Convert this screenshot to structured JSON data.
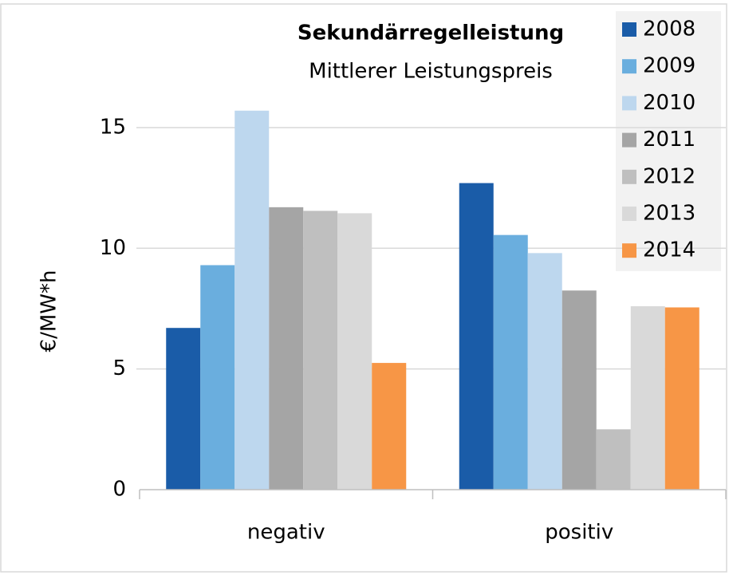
{
  "chart_data": {
    "type": "bar",
    "title": "Sekundärregelleistung",
    "subtitle": "Mittlerer Leistungspreis",
    "y_label": "€/MW*h",
    "categories": [
      "negativ",
      "positiv"
    ],
    "series": [
      {
        "name": "2008",
        "color": "#1a5ca8",
        "values": [
          6.7,
          12.7
        ]
      },
      {
        "name": "2009",
        "color": "#6aaede",
        "values": [
          9.3,
          10.55
        ]
      },
      {
        "name": "2010",
        "color": "#bdd7ee",
        "values": [
          15.7,
          9.8
        ]
      },
      {
        "name": "2011",
        "color": "#a5a5a5",
        "values": [
          11.7,
          8.25
        ]
      },
      {
        "name": "2012",
        "color": "#bfbfbf",
        "values": [
          11.55,
          2.5
        ]
      },
      {
        "name": "2013",
        "color": "#d9d9d9",
        "values": [
          11.45,
          7.6
        ]
      },
      {
        "name": "2014",
        "color": "#f79646",
        "values": [
          5.25,
          7.55
        ]
      }
    ],
    "ylim": [
      0,
      20
    ],
    "yticks": [
      0,
      5,
      10,
      15
    ],
    "grid": true,
    "legend": "top-right"
  }
}
